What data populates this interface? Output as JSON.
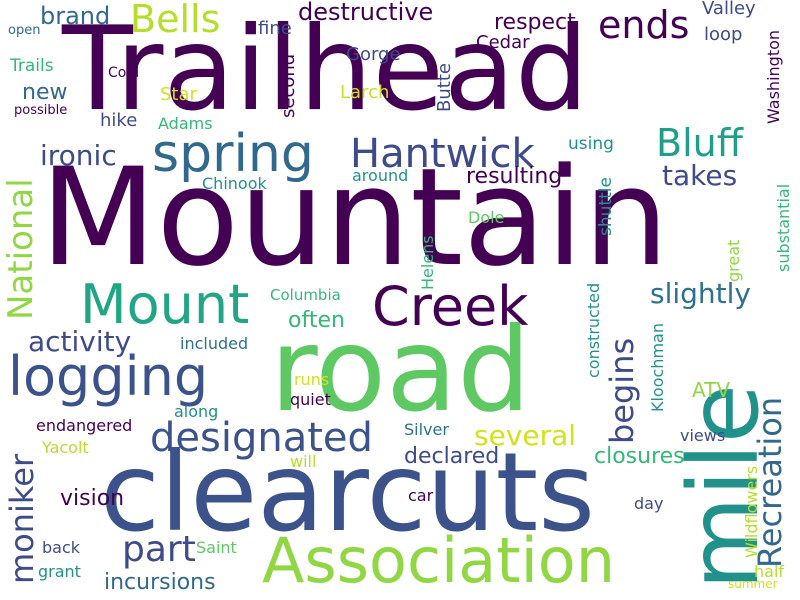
{
  "palette": {
    "deep_purple": "#440154",
    "indigo": "#3b528b",
    "blue": "#31688e",
    "teal": "#21918c",
    "green": "#35b779",
    "light_green": "#5ec962",
    "lime": "#90d743",
    "yellow": "#fde725"
  },
  "words": [
    {
      "text": "Mountain"
    },
    {
      "text": "Trailhead"
    },
    {
      "text": "road"
    },
    {
      "text": "clearcuts"
    },
    {
      "text": "mile"
    },
    {
      "text": "Association"
    },
    {
      "text": "Mount"
    },
    {
      "text": "logging"
    },
    {
      "text": "Creek"
    },
    {
      "text": "spring"
    },
    {
      "text": "Hantwick"
    },
    {
      "text": "designated"
    },
    {
      "text": "Bells"
    },
    {
      "text": "ends"
    },
    {
      "text": "Bluff"
    },
    {
      "text": "National"
    },
    {
      "text": "moniker"
    },
    {
      "text": "part"
    },
    {
      "text": "Recreation"
    },
    {
      "text": "begins"
    },
    {
      "text": "activity"
    },
    {
      "text": "ironic"
    },
    {
      "text": "takes"
    },
    {
      "text": "slightly"
    },
    {
      "text": "several"
    },
    {
      "text": "brand"
    },
    {
      "text": "destructive"
    },
    {
      "text": "respect"
    },
    {
      "text": "resulting"
    },
    {
      "text": "often"
    },
    {
      "text": "new"
    },
    {
      "text": "closures"
    },
    {
      "text": "declared"
    },
    {
      "text": "incursions"
    },
    {
      "text": "vision"
    },
    {
      "text": "Valley"
    },
    {
      "text": "Washington"
    },
    {
      "text": "loop"
    },
    {
      "text": "fine"
    },
    {
      "text": "Gorge"
    },
    {
      "text": "Cedar"
    },
    {
      "text": "Butte"
    },
    {
      "text": "second"
    },
    {
      "text": "Larch"
    },
    {
      "text": "Star"
    },
    {
      "text": "Adams"
    },
    {
      "text": "hike"
    },
    {
      "text": "Trails"
    },
    {
      "text": "Cold"
    },
    {
      "text": "open"
    },
    {
      "text": "possible"
    },
    {
      "text": "using"
    },
    {
      "text": "Chinook"
    },
    {
      "text": "around"
    },
    {
      "text": "Dole"
    },
    {
      "text": "shuttle"
    },
    {
      "text": "substantial"
    },
    {
      "text": "Columbia"
    },
    {
      "text": "Helens"
    },
    {
      "text": "constructed"
    },
    {
      "text": "great"
    },
    {
      "text": "Kloochman"
    },
    {
      "text": "included"
    },
    {
      "text": "runs"
    },
    {
      "text": "quiet"
    },
    {
      "text": "ATV"
    },
    {
      "text": "along"
    },
    {
      "text": "endangered"
    },
    {
      "text": "Silver"
    },
    {
      "text": "views"
    },
    {
      "text": "Wildflowers"
    },
    {
      "text": "Yacolt"
    },
    {
      "text": "will"
    },
    {
      "text": "car"
    },
    {
      "text": "day"
    },
    {
      "text": "back"
    },
    {
      "text": "Saint"
    },
    {
      "text": "grant"
    },
    {
      "text": "half"
    },
    {
      "text": "summer"
    }
  ]
}
